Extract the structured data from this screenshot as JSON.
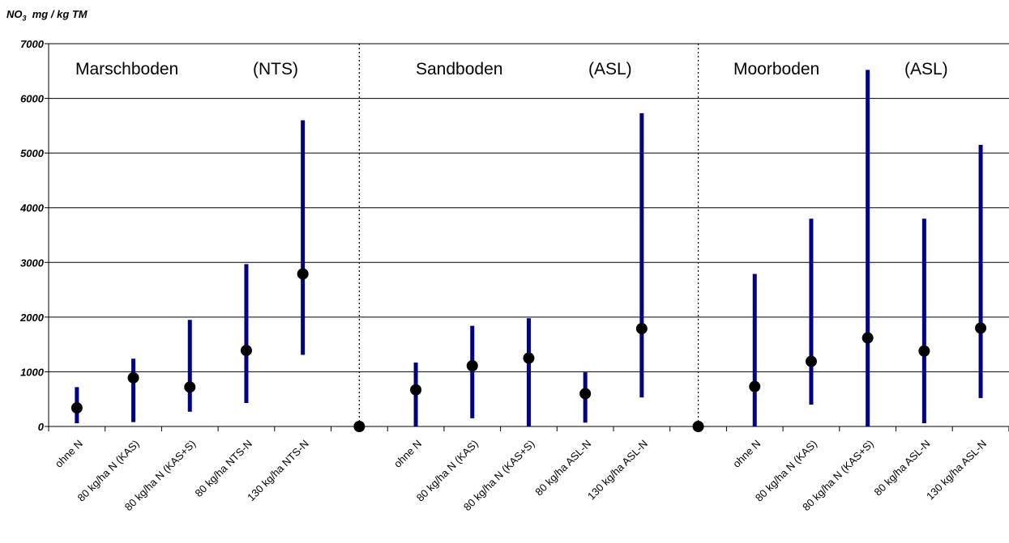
{
  "chart_data": {
    "type": "scatter",
    "ylabel": "NO₃ mg / kg TM",
    "ylim": [
      0,
      7000
    ],
    "yticks": [
      "0",
      "1000",
      "2000",
      "3000",
      "4000",
      "5000",
      "6000",
      "7000"
    ],
    "grid": true,
    "groups": [
      {
        "title": "Marschboden",
        "fertilizer": "(NTS)",
        "categories": [
          "ohne N",
          "80 kg/ha N (KAS)",
          "80 kg/ha N (KAS+S)",
          "80 kg/ha NTS-N",
          "130 kg/ha NTS-N"
        ],
        "median": [
          340,
          890,
          720,
          1390,
          2790
        ],
        "min": [
          60,
          80,
          270,
          430,
          1310
        ],
        "max": [
          720,
          1240,
          1950,
          2970,
          5600
        ]
      },
      {
        "title": "Sandboden",
        "fertilizer": "(ASL)",
        "categories": [
          "ohne N",
          "80 kg/ha N (KAS)",
          "80 kg/ha N (KAS+S)",
          "80 kg/ha ASL-N",
          "130 kg/ha ASL-N"
        ],
        "median": [
          670,
          1110,
          1250,
          600,
          1790
        ],
        "min": [
          0,
          150,
          0,
          70,
          530
        ],
        "max": [
          1170,
          1840,
          1980,
          990,
          5730
        ]
      },
      {
        "title": "Moorboden",
        "fertilizer": "(ASL)",
        "categories": [
          "ohne N",
          "80 kg/ha N (KAS)",
          "80 kg/ha N (KAS+S)",
          "80 kg/ha ASL-N",
          "130 kg/ha ASL-N"
        ],
        "median": [
          730,
          1190,
          1620,
          1380,
          1800
        ],
        "min": [
          0,
          400,
          0,
          60,
          520
        ],
        "max": [
          2790,
          3800,
          6520,
          3800,
          5150
        ]
      }
    ],
    "separator_points": [
      0,
      0
    ],
    "colors": {
      "range_line": "#000080",
      "median_dot": "#000000",
      "grid": "#000000"
    }
  }
}
